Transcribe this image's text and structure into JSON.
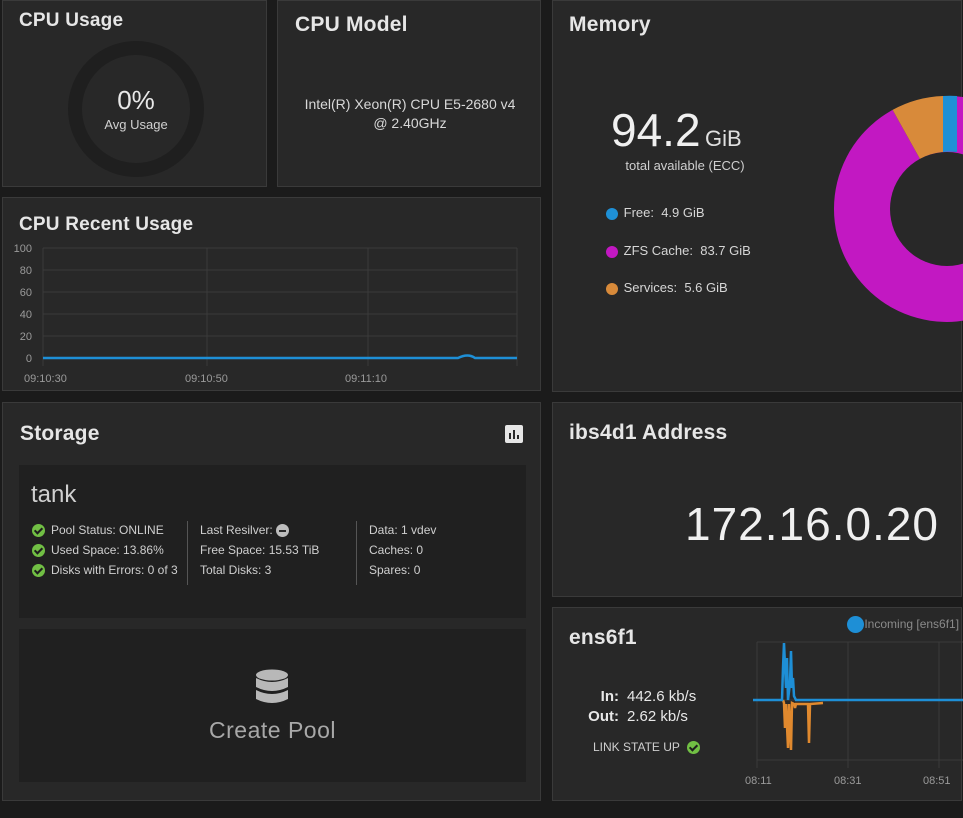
{
  "cpu_usage": {
    "title": "CPU Usage",
    "value": "0%",
    "label": "Avg Usage"
  },
  "cpu_model": {
    "title": "CPU Model",
    "line1": "Intel(R) Xeon(R) CPU E5-2680 v4",
    "line2": "@ 2.40GHz"
  },
  "cpu_recent": {
    "title": "CPU Recent Usage",
    "y_ticks": [
      "100",
      "80",
      "60",
      "40",
      "20",
      "0"
    ],
    "x_ticks": [
      "09:10:30",
      "09:10:50",
      "09:11:10"
    ],
    "series_color": "#1e8fd6"
  },
  "memory": {
    "title": "Memory",
    "total_value": "94.2",
    "total_unit": "GiB",
    "total_label": "total available (ECC)",
    "legend": [
      {
        "name": "Free:",
        "value": "4.9 GiB",
        "color": "#1e90d6"
      },
      {
        "name": "ZFS Cache:",
        "value": "83.7 GiB",
        "color": "#c218c2"
      },
      {
        "name": "Services:",
        "value": "5.6 GiB",
        "color": "#d88a3a"
      }
    ]
  },
  "storage": {
    "title": "Storage",
    "chart_icon": "bar-chart-icon",
    "pool": {
      "name": "tank",
      "col1": [
        "Pool Status: ONLINE",
        "Used Space: 13.86%",
        "Disks with Errors: 0 of 3"
      ],
      "col2": [
        "Last Resilver:",
        "Free Space: 15.53 TiB",
        "Total Disks: 3"
      ],
      "col3": [
        "Data: 1 vdev",
        "Caches: 0",
        "Spares: 0"
      ]
    },
    "create_pool": {
      "label": "Create Pool",
      "icon": "database-icon"
    }
  },
  "address": {
    "title": "ibs4d1 Address",
    "value": "172.16.0.20"
  },
  "network": {
    "title": "ens6f1",
    "in_label": "In:",
    "in_value": "442.6 kb/s",
    "out_label": "Out:",
    "out_value": "2.62 kb/s",
    "link_state": "LINK STATE UP",
    "legend_incoming": "Incoming [ens6f1]",
    "x_ticks": [
      "08:11",
      "08:31",
      "08:51"
    ],
    "incoming_color": "#1e8fd6",
    "outgoing_color": "#e0892e"
  }
}
